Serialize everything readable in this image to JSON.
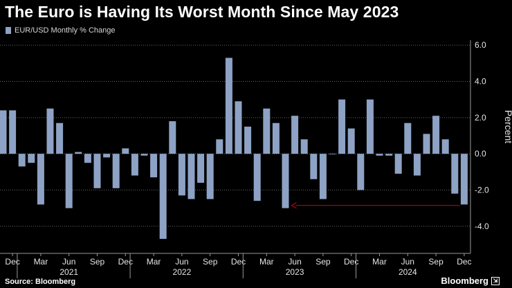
{
  "title": "The Euro is Having Its Worst Month Since May 2023",
  "source": "Source: Bloomberg",
  "brand": "Bloomberg",
  "colors": {
    "bar": "#8da2c4",
    "arrow": "#d0021b",
    "grid": "#6a6a6a",
    "background": "#000000"
  },
  "chart_data": {
    "type": "bar",
    "title": "The Euro is Having Its Worst Month Since May 2023",
    "ylabel": "Percent",
    "xlabel": "",
    "ylim": [
      -5.5,
      6.2
    ],
    "yticks": [
      6.0,
      4.0,
      2.0,
      0.0,
      -2.0,
      -4.0
    ],
    "ytick_labels": [
      "6.0",
      "4.0",
      "2.0",
      "0.0",
      "-2.0",
      "-4.0"
    ],
    "grid": true,
    "legend_position": "top-left",
    "series": [
      {
        "name": "EUR/USD Monthly % Change",
        "values": [
          2.4,
          2.4,
          -0.7,
          -0.5,
          -2.8,
          2.5,
          1.7,
          -3.0,
          0.1,
          -0.5,
          -1.9,
          -0.2,
          -1.9,
          0.3,
          -1.2,
          -0.1,
          -1.3,
          -4.7,
          1.8,
          -2.3,
          -2.5,
          -1.6,
          -2.5,
          0.8,
          5.3,
          2.9,
          1.5,
          -2.6,
          2.5,
          1.7,
          -3.0,
          2.1,
          0.8,
          -1.4,
          -2.5,
          0.0,
          3.0,
          1.4,
          -2.0,
          3.0,
          -0.1,
          -0.1,
          -1.1,
          1.7,
          -1.2,
          1.1,
          2.1,
          0.8,
          -2.2,
          -2.8
        ]
      }
    ],
    "categories": [
      "Nov 2020",
      "Dec 2020",
      "Jan 2021",
      "Feb 2021",
      "Mar 2021",
      "Apr 2021",
      "May 2021",
      "Jun 2021",
      "Jul 2021",
      "Aug 2021",
      "Sep 2021",
      "Oct 2021",
      "Nov 2021",
      "Dec 2021",
      "Jan 2022",
      "Feb 2022",
      "Mar 2022",
      "Apr 2022",
      "May 2022",
      "Jun 2022",
      "Jul 2022",
      "Aug 2022",
      "Sep 2022",
      "Oct 2022",
      "Nov 2022",
      "Dec 2022",
      "Jan 2023",
      "Feb 2023",
      "Mar 2023",
      "Apr 2023",
      "May 2023",
      "Jun 2023",
      "Jul 2023",
      "Aug 2023",
      "Sep 2023",
      "Oct 2023",
      "Nov 2023",
      "Dec 2023",
      "Jan 2024",
      "Feb 2024",
      "Mar 2024",
      "Apr 2024",
      "May 2024",
      "Jun 2024",
      "Jul 2024",
      "Aug 2024",
      "Sep 2024",
      "Oct 2024",
      "Nov 2024",
      "Dec 2024"
    ],
    "x_tick_labels": [
      {
        "index": 1,
        "label": "Dec"
      },
      {
        "index": 4,
        "label": "Mar"
      },
      {
        "index": 7,
        "label": "Jun"
      },
      {
        "index": 10,
        "label": "Sep"
      },
      {
        "index": 13,
        "label": "Dec"
      },
      {
        "index": 16,
        "label": "Mar"
      },
      {
        "index": 19,
        "label": "Jun"
      },
      {
        "index": 22,
        "label": "Sep"
      },
      {
        "index": 25,
        "label": "Dec"
      },
      {
        "index": 28,
        "label": "Mar"
      },
      {
        "index": 31,
        "label": "Jun"
      },
      {
        "index": 34,
        "label": "Sep"
      },
      {
        "index": 37,
        "label": "Dec"
      },
      {
        "index": 40,
        "label": "Mar"
      },
      {
        "index": 43,
        "label": "Jun"
      },
      {
        "index": 46,
        "label": "Sep"
      },
      {
        "index": 49,
        "label": "Dec"
      }
    ],
    "year_labels": [
      {
        "index": 7,
        "label": "2021"
      },
      {
        "index": 19,
        "label": "2022"
      },
      {
        "index": 31,
        "label": "2023"
      },
      {
        "index": 43,
        "label": "2024"
      }
    ],
    "year_separators_after": [
      1,
      13,
      25,
      37
    ],
    "annotation": {
      "type": "arrow",
      "from_index": 49,
      "to_index": 30,
      "y": -2.85
    }
  }
}
